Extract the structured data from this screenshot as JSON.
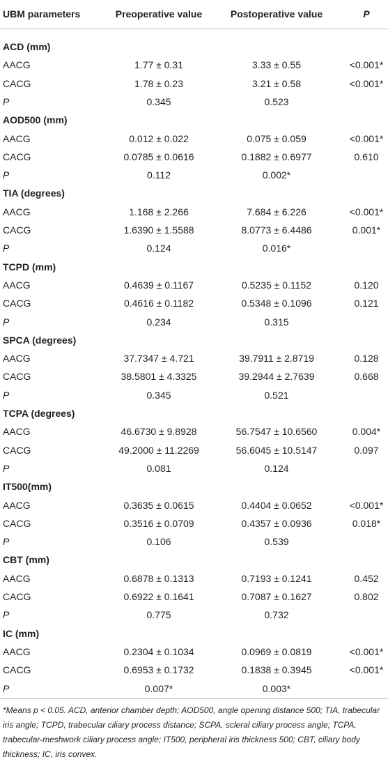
{
  "table": {
    "header": [
      "UBM parameters",
      "Preoperative value",
      "Postoperative value",
      "P"
    ],
    "sections": [
      {
        "title": "ACD (mm)",
        "rows": [
          [
            "AACG",
            "1.77 ± 0.31",
            "3.33 ± 0.55",
            "<0.001*"
          ],
          [
            "CACG",
            "1.78 ± 0.23",
            "3.21 ± 0.58",
            "<0.001*"
          ],
          [
            "P",
            "0.345",
            "0.523"
          ]
        ]
      },
      {
        "title": "AOD500 (mm)",
        "rows": [
          [
            "AACG",
            "0.012 ± 0.022",
            "0.075 ± 0.059",
            "<0.001*"
          ],
          [
            "CACG",
            "0.0785 ± 0.0616",
            "0.1882 ± 0.6977",
            "0.610"
          ],
          [
            "P",
            "0.112",
            "0.002*"
          ]
        ]
      },
      {
        "title": "TIA (degrees)",
        "rows": [
          [
            "AACG",
            "1.168 ± 2.266",
            "7.684 ± 6.226",
            "<0.001*"
          ],
          [
            "CACG",
            "1.6390 ± 1.5588",
            "8.0773 ± 6.4486",
            "0.001*"
          ],
          [
            "P",
            "0.124",
            "0.016*"
          ]
        ]
      },
      {
        "title": "TCPD (mm)",
        "rows": [
          [
            "AACG",
            "0.4639 ± 0.1167",
            "0.5235 ± 0.1152",
            "0.120"
          ],
          [
            "CACG",
            "0.4616 ± 0.1182",
            "0.5348 ± 0.1096",
            "0.121"
          ],
          [
            "P",
            "0.234",
            "0.315"
          ]
        ]
      },
      {
        "title": "SPCA (degrees)",
        "rows": [
          [
            "AACG",
            "37.7347 ± 4.721",
            "39.7911 ± 2.8719",
            "0.128"
          ],
          [
            "CACG",
            "38.5801 ± 4.3325",
            "39.2944 ± 2.7639",
            "0.668"
          ],
          [
            "P",
            "0.345",
            "0.521"
          ]
        ]
      },
      {
        "title": "TCPA (degrees)",
        "rows": [
          [
            "AACG",
            "46.6730 ± 9.8928",
            "56.7547 ± 10.6560",
            "0.004*"
          ],
          [
            "CACG",
            "49.2000 ± 11.2269",
            "56.6045 ± 10.5147",
            "0.097"
          ],
          [
            "P",
            "0.081",
            "0.124"
          ]
        ]
      },
      {
        "title": "IT500(mm)",
        "rows": [
          [
            "AACG",
            "0.3635 ± 0.0615",
            "0.4404 ± 0.0652",
            "<0.001*"
          ],
          [
            "CACG",
            "0.3516 ± 0.0709",
            "0.4357 ± 0.0936",
            "0.018*"
          ],
          [
            "P",
            "0.106",
            "0.539"
          ]
        ]
      },
      {
        "title": "CBT (mm)",
        "rows": [
          [
            "AACG",
            "0.6878 ± 0.1313",
            "0.7193 ± 0.1241",
            "0.452"
          ],
          [
            "CACG",
            "0.6922 ± 0.1641",
            "0.7087 ± 0.1627",
            "0.802"
          ],
          [
            "P",
            "0.775",
            "0.732"
          ]
        ]
      },
      {
        "title": "IC (mm)",
        "rows": [
          [
            "AACG",
            "0.2304 ± 0.1034",
            "0.0969 ± 0.0819",
            "<0.001*"
          ],
          [
            "CACG",
            "0.6953 ± 0.1732",
            "0.1838 ± 0.3945",
            "<0.001*"
          ],
          [
            "P",
            "0.007*",
            "0.003*"
          ]
        ]
      }
    ]
  },
  "footnote": "*Means p < 0.05. ACD, anterior chamber depth; AOD500, angle opening distance 500; TIA, trabecular iris angle; TCPD, trabecular ciliary process distance; SCPA, scleral ciliary process angle; TCPA, trabecular-meshwork ciliary process angle; IT500, peripheral iris thickness 500; CBT, ciliary body thickness; IC, iris convex."
}
